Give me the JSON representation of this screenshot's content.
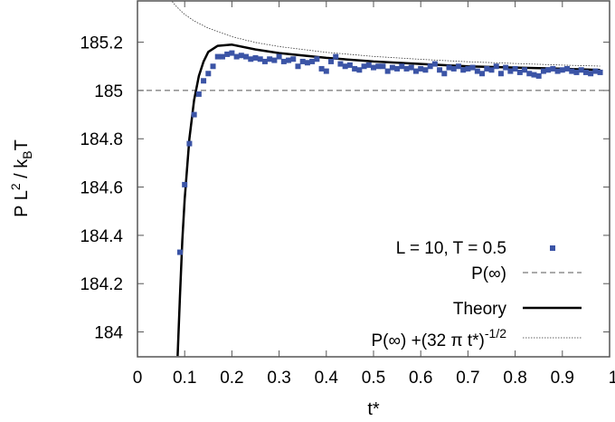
{
  "chart_data": {
    "type": "line",
    "title": "",
    "xlabel": "t*",
    "ylabel": {
      "main": "P L",
      "sup": "2",
      "mid": " / k",
      "sub": "B",
      "end": "T"
    },
    "xlim": [
      0,
      1
    ],
    "ylim": [
      183.897,
      185.371
    ],
    "x_ticks": [
      0,
      0.1,
      0.2,
      0.3,
      0.4,
      0.5,
      0.6,
      0.7,
      0.8,
      0.9,
      1
    ],
    "x_tick_labels": [
      "0",
      "0.1",
      "0.2",
      "0.3",
      "0.4",
      "0.5",
      "0.6",
      "0.7",
      "0.8",
      "0.9",
      "1"
    ],
    "y_ticks": [
      184,
      184.2,
      184.4,
      184.6,
      184.8,
      185,
      185.2
    ],
    "y_tick_labels": [
      "184",
      "184.2",
      "184.4",
      "184.6",
      "184.8",
      "185",
      "185.2"
    ],
    "grid": false,
    "legend_position": "bottom-right",
    "series": [
      {
        "name": "L = 10, T = 0.5",
        "style": "points",
        "color": "#3b54a6",
        "x": [
          0.09,
          0.1,
          0.11,
          0.12,
          0.13,
          0.14,
          0.15,
          0.16,
          0.17,
          0.18,
          0.19,
          0.2,
          0.21,
          0.22,
          0.23,
          0.24,
          0.25,
          0.26,
          0.27,
          0.28,
          0.29,
          0.3,
          0.31,
          0.32,
          0.33,
          0.34,
          0.35,
          0.36,
          0.37,
          0.38,
          0.39,
          0.4,
          0.41,
          0.42,
          0.43,
          0.44,
          0.45,
          0.46,
          0.47,
          0.48,
          0.49,
          0.5,
          0.51,
          0.52,
          0.53,
          0.54,
          0.55,
          0.56,
          0.57,
          0.58,
          0.59,
          0.6,
          0.61,
          0.62,
          0.63,
          0.64,
          0.65,
          0.66,
          0.67,
          0.68,
          0.69,
          0.7,
          0.71,
          0.72,
          0.73,
          0.74,
          0.75,
          0.76,
          0.77,
          0.78,
          0.79,
          0.8,
          0.81,
          0.82,
          0.83,
          0.84,
          0.85,
          0.86,
          0.87,
          0.88,
          0.89,
          0.9,
          0.91,
          0.92,
          0.93,
          0.94,
          0.95,
          0.96,
          0.97,
          0.98
        ],
        "y": [
          184.33,
          184.61,
          184.78,
          184.9,
          184.985,
          185.04,
          185.07,
          185.1,
          185.14,
          185.14,
          185.15,
          185.155,
          185.14,
          185.145,
          185.14,
          185.13,
          185.135,
          185.13,
          185.12,
          185.13,
          185.125,
          185.14,
          185.12,
          185.125,
          185.13,
          185.1,
          185.12,
          185.115,
          185.12,
          185.13,
          185.09,
          185.08,
          185.12,
          185.14,
          185.11,
          185.1,
          185.105,
          185.09,
          185.085,
          185.1,
          185.105,
          185.095,
          185.1,
          185.1,
          185.08,
          185.095,
          185.09,
          185.1,
          185.09,
          185.095,
          185.08,
          185.09,
          185.085,
          185.1,
          185.11,
          185.085,
          185.07,
          185.095,
          185.09,
          185.1,
          185.085,
          185.09,
          185.095,
          185.08,
          185.07,
          185.09,
          185.085,
          185.1,
          185.07,
          185.095,
          185.08,
          185.09,
          185.075,
          185.085,
          185.07,
          185.065,
          185.06,
          185.08,
          185.085,
          185.09,
          185.08,
          185.085,
          185.09,
          185.08,
          185.075,
          185.085,
          185.075,
          185.07,
          185.08,
          185.075
        ]
      },
      {
        "name": "P(∞)",
        "style": "dashed",
        "color": "#555555",
        "x": [
          0,
          1
        ],
        "y": [
          185,
          185
        ]
      },
      {
        "name": "Theory",
        "style": "solid",
        "color": "#000000",
        "x": [
          0.085,
          0.09,
          0.095,
          0.1,
          0.11,
          0.12,
          0.13,
          0.14,
          0.15,
          0.17,
          0.2,
          0.25,
          0.3,
          0.4,
          0.5,
          0.6,
          0.7,
          0.8,
          0.9,
          0.98
        ],
        "y": [
          183.9,
          184.15,
          184.38,
          184.55,
          184.8,
          184.96,
          185.06,
          185.12,
          185.16,
          185.185,
          185.19,
          185.17,
          185.155,
          185.135,
          185.12,
          185.11,
          185.1,
          185.095,
          185.09,
          185.085
        ]
      },
      {
        "name": "P(∞) +(32 π t*)",
        "name_sup": "-1/2",
        "style": "dotted",
        "color": "#333333",
        "x": [
          0.07,
          0.08,
          0.09,
          0.1,
          0.12,
          0.15,
          0.2,
          0.25,
          0.3,
          0.4,
          0.5,
          0.6,
          0.7,
          0.8,
          0.9,
          0.98
        ],
        "y": [
          185.377,
          185.353,
          185.333,
          185.315,
          185.288,
          185.258,
          185.223,
          185.199,
          185.182,
          185.158,
          185.141,
          185.129,
          185.119,
          185.112,
          185.105,
          185.101
        ]
      }
    ]
  }
}
